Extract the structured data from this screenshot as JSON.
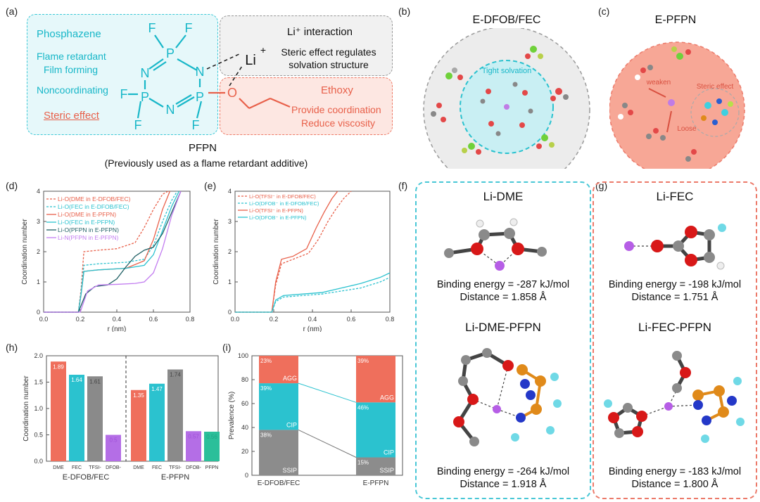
{
  "panel_a": {
    "label": "(a)",
    "left_items": [
      "Phosphazene",
      "Flame retardant",
      "Film forming",
      "Noncoordinating"
    ],
    "steric": "Steric effect",
    "atoms": {
      "F": "F",
      "P": "P",
      "N": "N",
      "O": "O",
      "Li": "Li",
      "plus": "+"
    },
    "li_title": "Li⁺ interaction",
    "li_note_1": "Steric effect regulates",
    "li_note_2": "solvation structure",
    "ethoxy": "Ethoxy",
    "ethoxy_1": "Provide coordination",
    "ethoxy_2": "Reduce viscosity",
    "name": "PFPN",
    "name_note": "(Previously used as a flame retardant additive)"
  },
  "panel_b": {
    "label": "(b)",
    "title": "E-DFOB/FEC",
    "inner": "Tight solvation"
  },
  "panel_c": {
    "label": "(c)",
    "title": "E-PFPN",
    "weaken": "weaken",
    "steric": "Steric effect",
    "loose": "Loose"
  },
  "panel_f": {
    "label": "(f)",
    "top_title": "Li-DME",
    "top_energy": "Binding energy = -287 kJ/mol",
    "top_distance": "Distance = 1.858 Å",
    "bot_title": "Li-DME-PFPN",
    "bot_energy": "Binding energy = -264 kJ/mol",
    "bot_distance": "Distance = 1.918 Å"
  },
  "panel_g": {
    "label": "(g)",
    "top_title": "Li-FEC",
    "top_energy": "Binding energy = -198 kJ/mol",
    "top_distance": "Distance = 1.751 Å",
    "bot_title": "Li-FEC-PFPN",
    "bot_energy": "Binding energy = -183 kJ/mol",
    "bot_distance": "Distance = 1.800 Å"
  },
  "chart_data": [
    {
      "id": "d",
      "label": "(d)",
      "type": "line",
      "xlabel": "r (nm)",
      "ylabel": "Coordination number",
      "xlim": [
        0.0,
        0.8
      ],
      "ylim": [
        0,
        4
      ],
      "xticks": [
        "0.0",
        "0.2",
        "0.4",
        "0.6",
        "0.8"
      ],
      "yticks": [
        "0",
        "1",
        "2",
        "3",
        "4"
      ],
      "series": [
        {
          "name": "Li-O(DME in E-DFOB/FEC)",
          "color": "#e8604a",
          "dash": true,
          "x": [
            0.0,
            0.19,
            0.205,
            0.22,
            0.3,
            0.4,
            0.5,
            0.55,
            0.6,
            0.65,
            0.68
          ],
          "y": [
            0,
            0,
            0.8,
            2.0,
            2.05,
            2.1,
            2.3,
            2.8,
            3.4,
            3.9,
            4.0
          ]
        },
        {
          "name": "Li-O(FEC in E-DFOB/FEC)",
          "color": "#2bc2cf",
          "dash": true,
          "x": [
            0.0,
            0.19,
            0.205,
            0.22,
            0.3,
            0.45,
            0.55,
            0.6,
            0.65,
            0.7,
            0.73
          ],
          "y": [
            0,
            0,
            0.7,
            1.55,
            1.6,
            1.65,
            1.75,
            2.2,
            3.0,
            3.7,
            4.0
          ]
        },
        {
          "name": "Li-O(DME in E-PFPN)",
          "color": "#e8604a",
          "dash": false,
          "x": [
            0.0,
            0.19,
            0.205,
            0.22,
            0.3,
            0.45,
            0.55,
            0.6,
            0.65,
            0.69
          ],
          "y": [
            0,
            0,
            0.6,
            1.35,
            1.4,
            1.45,
            1.7,
            2.4,
            3.4,
            4.0
          ]
        },
        {
          "name": "Li-O(FEC in E-PFPN)",
          "color": "#2bc2cf",
          "dash": false,
          "x": [
            0.0,
            0.19,
            0.205,
            0.22,
            0.3,
            0.45,
            0.55,
            0.6,
            0.65,
            0.7,
            0.74
          ],
          "y": [
            0,
            0,
            0.6,
            1.35,
            1.4,
            1.45,
            1.55,
            1.9,
            2.7,
            3.5,
            4.0
          ]
        },
        {
          "name": "Li-O(PFPN in E-PFPN)",
          "color": "#1f5f64",
          "dash": false,
          "x": [
            0.0,
            0.19,
            0.23,
            0.28,
            0.35,
            0.4,
            0.45,
            0.5,
            0.55,
            0.6,
            0.65,
            0.7,
            0.75
          ],
          "y": [
            0,
            0,
            0.6,
            0.85,
            0.9,
            1.1,
            1.5,
            1.85,
            2.05,
            2.15,
            2.6,
            3.3,
            4.0
          ]
        },
        {
          "name": "Li-N(PFPN in E-PFPN)",
          "color": "#c27cf0",
          "dash": false,
          "x": [
            0.0,
            0.2,
            0.24,
            0.3,
            0.4,
            0.5,
            0.55,
            0.6,
            0.65,
            0.7,
            0.75
          ],
          "y": [
            0,
            0,
            0.7,
            0.9,
            0.92,
            0.95,
            1.0,
            1.3,
            2.1,
            3.2,
            4.0
          ]
        }
      ]
    },
    {
      "id": "e",
      "label": "(e)",
      "type": "line",
      "xlabel": "r (nm)",
      "ylabel": "Coordination number",
      "xlim": [
        0.0,
        0.8
      ],
      "ylim": [
        0,
        4
      ],
      "xticks": [
        "0.0",
        "0.2",
        "0.4",
        "0.6",
        "0.8"
      ],
      "yticks": [
        "0",
        "1",
        "2",
        "3",
        "4"
      ],
      "series": [
        {
          "name": "Li-O(TFSI⁻ in E-DFOB/FEC)",
          "color": "#e8604a",
          "dash": true,
          "x": [
            0.0,
            0.19,
            0.21,
            0.24,
            0.3,
            0.38,
            0.43,
            0.48,
            0.52,
            0.56,
            0.6
          ],
          "y": [
            0,
            0,
            0.9,
            1.6,
            1.75,
            1.95,
            2.4,
            3.0,
            3.4,
            3.75,
            4.0
          ]
        },
        {
          "name": "Li-O(DFOB⁻ in E-DFOB/FEC)",
          "color": "#2bc2cf",
          "dash": true,
          "x": [
            0.0,
            0.19,
            0.21,
            0.25,
            0.35,
            0.45,
            0.55,
            0.65,
            0.75,
            0.8
          ],
          "y": [
            0,
            0,
            0.35,
            0.5,
            0.55,
            0.6,
            0.7,
            0.8,
            1.0,
            1.15
          ]
        },
        {
          "name": "Li-O(TFSI⁻ in E-PFPN)",
          "color": "#e8604a",
          "dash": false,
          "x": [
            0.0,
            0.19,
            0.21,
            0.24,
            0.3,
            0.37,
            0.42,
            0.46,
            0.5,
            0.53
          ],
          "y": [
            0,
            0,
            1.0,
            1.75,
            1.85,
            2.1,
            2.8,
            3.3,
            3.75,
            4.0
          ]
        },
        {
          "name": "Li-O(DFOB⁻ in E-PFPN)",
          "color": "#2bc2cf",
          "dash": false,
          "x": [
            0.0,
            0.19,
            0.21,
            0.25,
            0.35,
            0.45,
            0.55,
            0.65,
            0.75,
            0.8
          ],
          "y": [
            0,
            0,
            0.4,
            0.55,
            0.6,
            0.65,
            0.8,
            0.95,
            1.15,
            1.3
          ]
        }
      ]
    },
    {
      "id": "h",
      "label": "(h)",
      "type": "bar",
      "ylabel": "Coordination number",
      "ylim": [
        0,
        2.0
      ],
      "yticks": [
        "0.0",
        "0.5",
        "1.0",
        "1.5",
        "2.0"
      ],
      "groups": [
        {
          "name": "E-DFOB/FEC",
          "categories": [
            "DME",
            "FEC",
            "TFSI-",
            "DFOB-"
          ],
          "values": [
            1.89,
            1.64,
            1.61,
            0.5
          ],
          "labels": [
            "1.89",
            "1.64",
            "1.61",
            "0.5"
          ]
        },
        {
          "name": "E-PFPN",
          "categories": [
            "DME",
            "FEC",
            "TFSI-",
            "DFOB-",
            "PFPN"
          ],
          "values": [
            1.35,
            1.47,
            1.74,
            0.57,
            0.56
          ],
          "labels": [
            "1.35",
            "1.47",
            "1.74",
            "0.57",
            "0.56"
          ]
        }
      ],
      "colors": {
        "DME": "#ef6f5c",
        "FEC": "#2bc2cf",
        "TFSI-": "#8a8a8a",
        "DFOB-": "#b46ee6",
        "PFPN": "#2bbf9a"
      },
      "label_colors": {
        "DME": "#ffffff",
        "FEC": "#ffffff",
        "TFSI-": "#444444",
        "DFOB-": "#a050d8",
        "PFPN": "#1ea585"
      }
    },
    {
      "id": "i",
      "label": "(i)",
      "type": "bar",
      "stacked": true,
      "ylabel": "Prevalence (%)",
      "ylim": [
        0,
        100
      ],
      "yticks": [
        "0",
        "20",
        "40",
        "60",
        "80",
        "100"
      ],
      "categories": [
        "E-DFOB/FEC",
        "E-PFPN"
      ],
      "series": [
        {
          "name": "SSIP",
          "values": [
            38,
            15
          ],
          "labels": [
            "38%",
            "15%"
          ],
          "color": "#8c8c8c"
        },
        {
          "name": "CIP",
          "values": [
            39,
            46
          ],
          "labels": [
            "39%",
            "46%"
          ],
          "color": "#2bc2cf"
        },
        {
          "name": "AGG",
          "values": [
            23,
            39
          ],
          "labels": [
            "23%",
            "39%"
          ],
          "color": "#ef6f5c"
        }
      ]
    }
  ]
}
